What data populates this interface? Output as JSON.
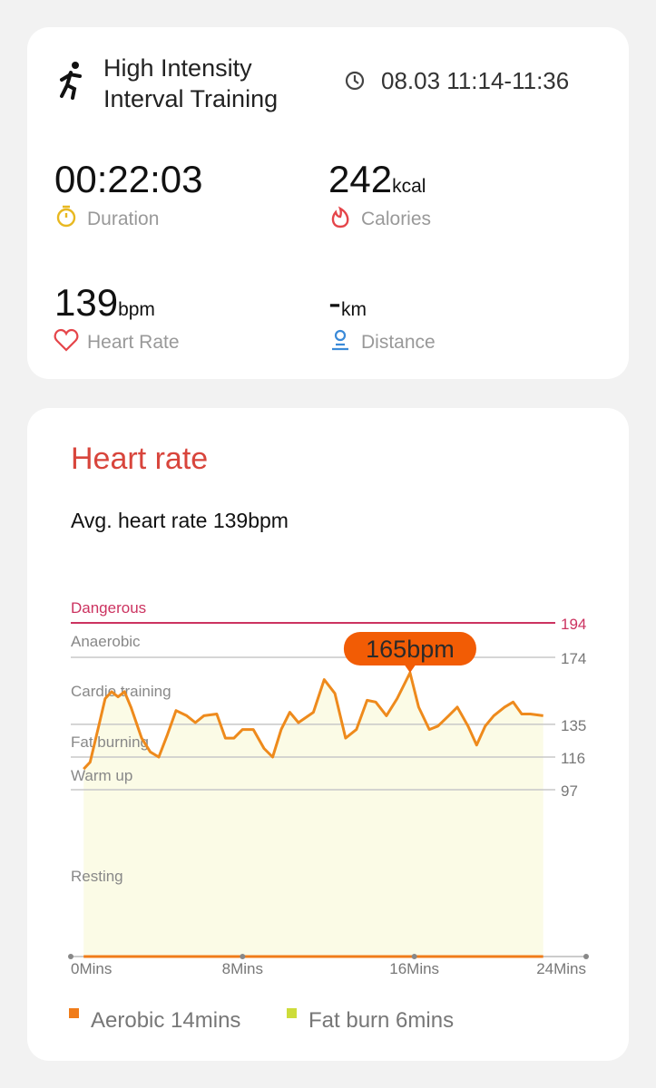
{
  "summary": {
    "title_line1": "High Intensity",
    "title_line2": "Interval Training",
    "time": "08.03 11:14-11:36",
    "metrics": [
      {
        "value": "00:22:03",
        "label": "Duration"
      },
      {
        "value": "242",
        "unit": "kcal",
        "label": "Calories"
      },
      {
        "value": "139",
        "unit": "bpm",
        "label": "Heart Rate"
      },
      {
        "value": "-",
        "unit": "km",
        "label": "Distance"
      }
    ]
  },
  "heart_card": {
    "title": "Heart rate",
    "average": "Avg. heart rate 139bpm"
  },
  "chart_data": {
    "type": "line",
    "zones": [
      "Dangerous",
      "Anaerobic",
      "Cardio training",
      "Fat burning",
      "Warm up",
      "Resting"
    ],
    "x": [
      0.6,
      0.9,
      1.3,
      1.6,
      1.9,
      2.2,
      2.5,
      2.8,
      3.3,
      3.7,
      4.1,
      4.5,
      4.9,
      5.4,
      5.8,
      6.2,
      6.8,
      7.2,
      7.6,
      8.0,
      8.5,
      9.0,
      9.4,
      9.8,
      10.2,
      10.6,
      11.3,
      11.8,
      12.3,
      12.8,
      13.3,
      13.8,
      14.2,
      14.7,
      15.2,
      15.8,
      16.2,
      16.7,
      17.1,
      17.6,
      18.0,
      18.5,
      18.9,
      19.3,
      19.7,
      20.2,
      20.6,
      21.0,
      21.4,
      22.0
    ],
    "series": [
      {
        "name": "Heart rate",
        "color": "#ee8a1c",
        "values": [
          109,
          113,
          134,
          150,
          154,
          151,
          154,
          145,
          127,
          119,
          116,
          129,
          143,
          140,
          136,
          140,
          141,
          127,
          127,
          132,
          132,
          121,
          116,
          132,
          142,
          136,
          142,
          161,
          153,
          127,
          132,
          149,
          148,
          140,
          150,
          165,
          145,
          132,
          134,
          140,
          145,
          134,
          123,
          134,
          140,
          145,
          148,
          141,
          141,
          140
        ]
      }
    ],
    "area_color": "#fbfbe6",
    "annotation": {
      "x": 15.8,
      "y": 165,
      "label": "165bpm",
      "color": "#f25c05"
    },
    "xlim": [
      0,
      24
    ],
    "xticks": [
      {
        "value": 0,
        "label": "0Mins"
      },
      {
        "value": 8,
        "label": "8Mins"
      },
      {
        "value": 16,
        "label": "16Mins"
      },
      {
        "value": 24,
        "label": "24Mins"
      }
    ],
    "ylim": [
      0,
      194
    ],
    "yticks": [
      97,
      116,
      135,
      174,
      194
    ],
    "grid": true,
    "grid_color": "#c8c8c8",
    "danger_color": "#cc3360",
    "legend": [
      {
        "name": "Aerobic 14mins",
        "color": "#f07c1a"
      },
      {
        "name": "Fat burn 6mins",
        "color": "#cddc3a"
      }
    ]
  }
}
